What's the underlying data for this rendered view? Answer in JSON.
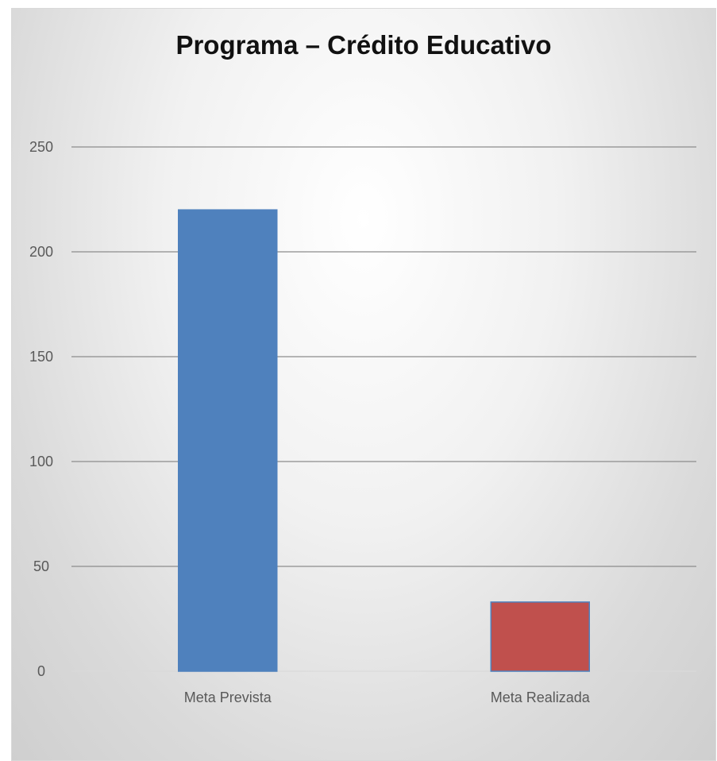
{
  "chart_data": {
    "type": "bar",
    "title": "Programa – Crédito Educativo",
    "categories": [
      "Meta Prevista",
      "Meta Realizada"
    ],
    "values": [
      220,
      33
    ],
    "colors": [
      "#4f81bd",
      "#c0504d"
    ],
    "ylim": [
      0,
      250
    ],
    "yticks": [
      "0",
      "50",
      "100",
      "150",
      "200",
      "250"
    ],
    "grid": true,
    "xlabel": "",
    "ylabel": ""
  }
}
